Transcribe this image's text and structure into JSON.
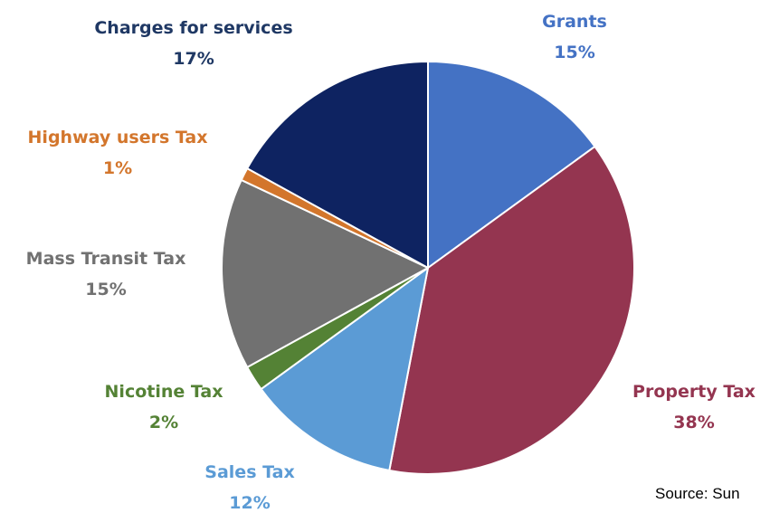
{
  "chart_data": {
    "type": "pie",
    "start_angle_deg": 0,
    "direction": "clockwise",
    "slices": [
      {
        "label": "Grants",
        "value": 15,
        "percent_label": "15%",
        "color": "#4472C4"
      },
      {
        "label": "Property Tax",
        "value": 38,
        "percent_label": "38%",
        "color": "#943550"
      },
      {
        "label": "Sales Tax",
        "value": 12,
        "percent_label": "12%",
        "color": "#5B9BD5"
      },
      {
        "label": "Nicotine Tax",
        "value": 2,
        "percent_label": "2%",
        "color": "#548235"
      },
      {
        "label": "Mass Transit Tax",
        "value": 15,
        "percent_label": "15%",
        "color": "#717171"
      },
      {
        "label": "Highway users Tax",
        "value": 1,
        "percent_label": "1%",
        "color": "#D3762C"
      },
      {
        "label": "Charges for services",
        "value": 17,
        "percent_label": "17%",
        "color": "#0E2361"
      }
    ],
    "label_colors": {
      "Grants": "#4472C4",
      "Property Tax": "#943550",
      "Sales Tax": "#5B9BD5",
      "Nicotine Tax": "#548235",
      "Mass Transit Tax": "#717171",
      "Highway users Tax": "#D3762C",
      "Charges for services": "#1F3864"
    },
    "slice_border_color": "#FFFFFF"
  },
  "source": {
    "text": "Source: Sun"
  }
}
